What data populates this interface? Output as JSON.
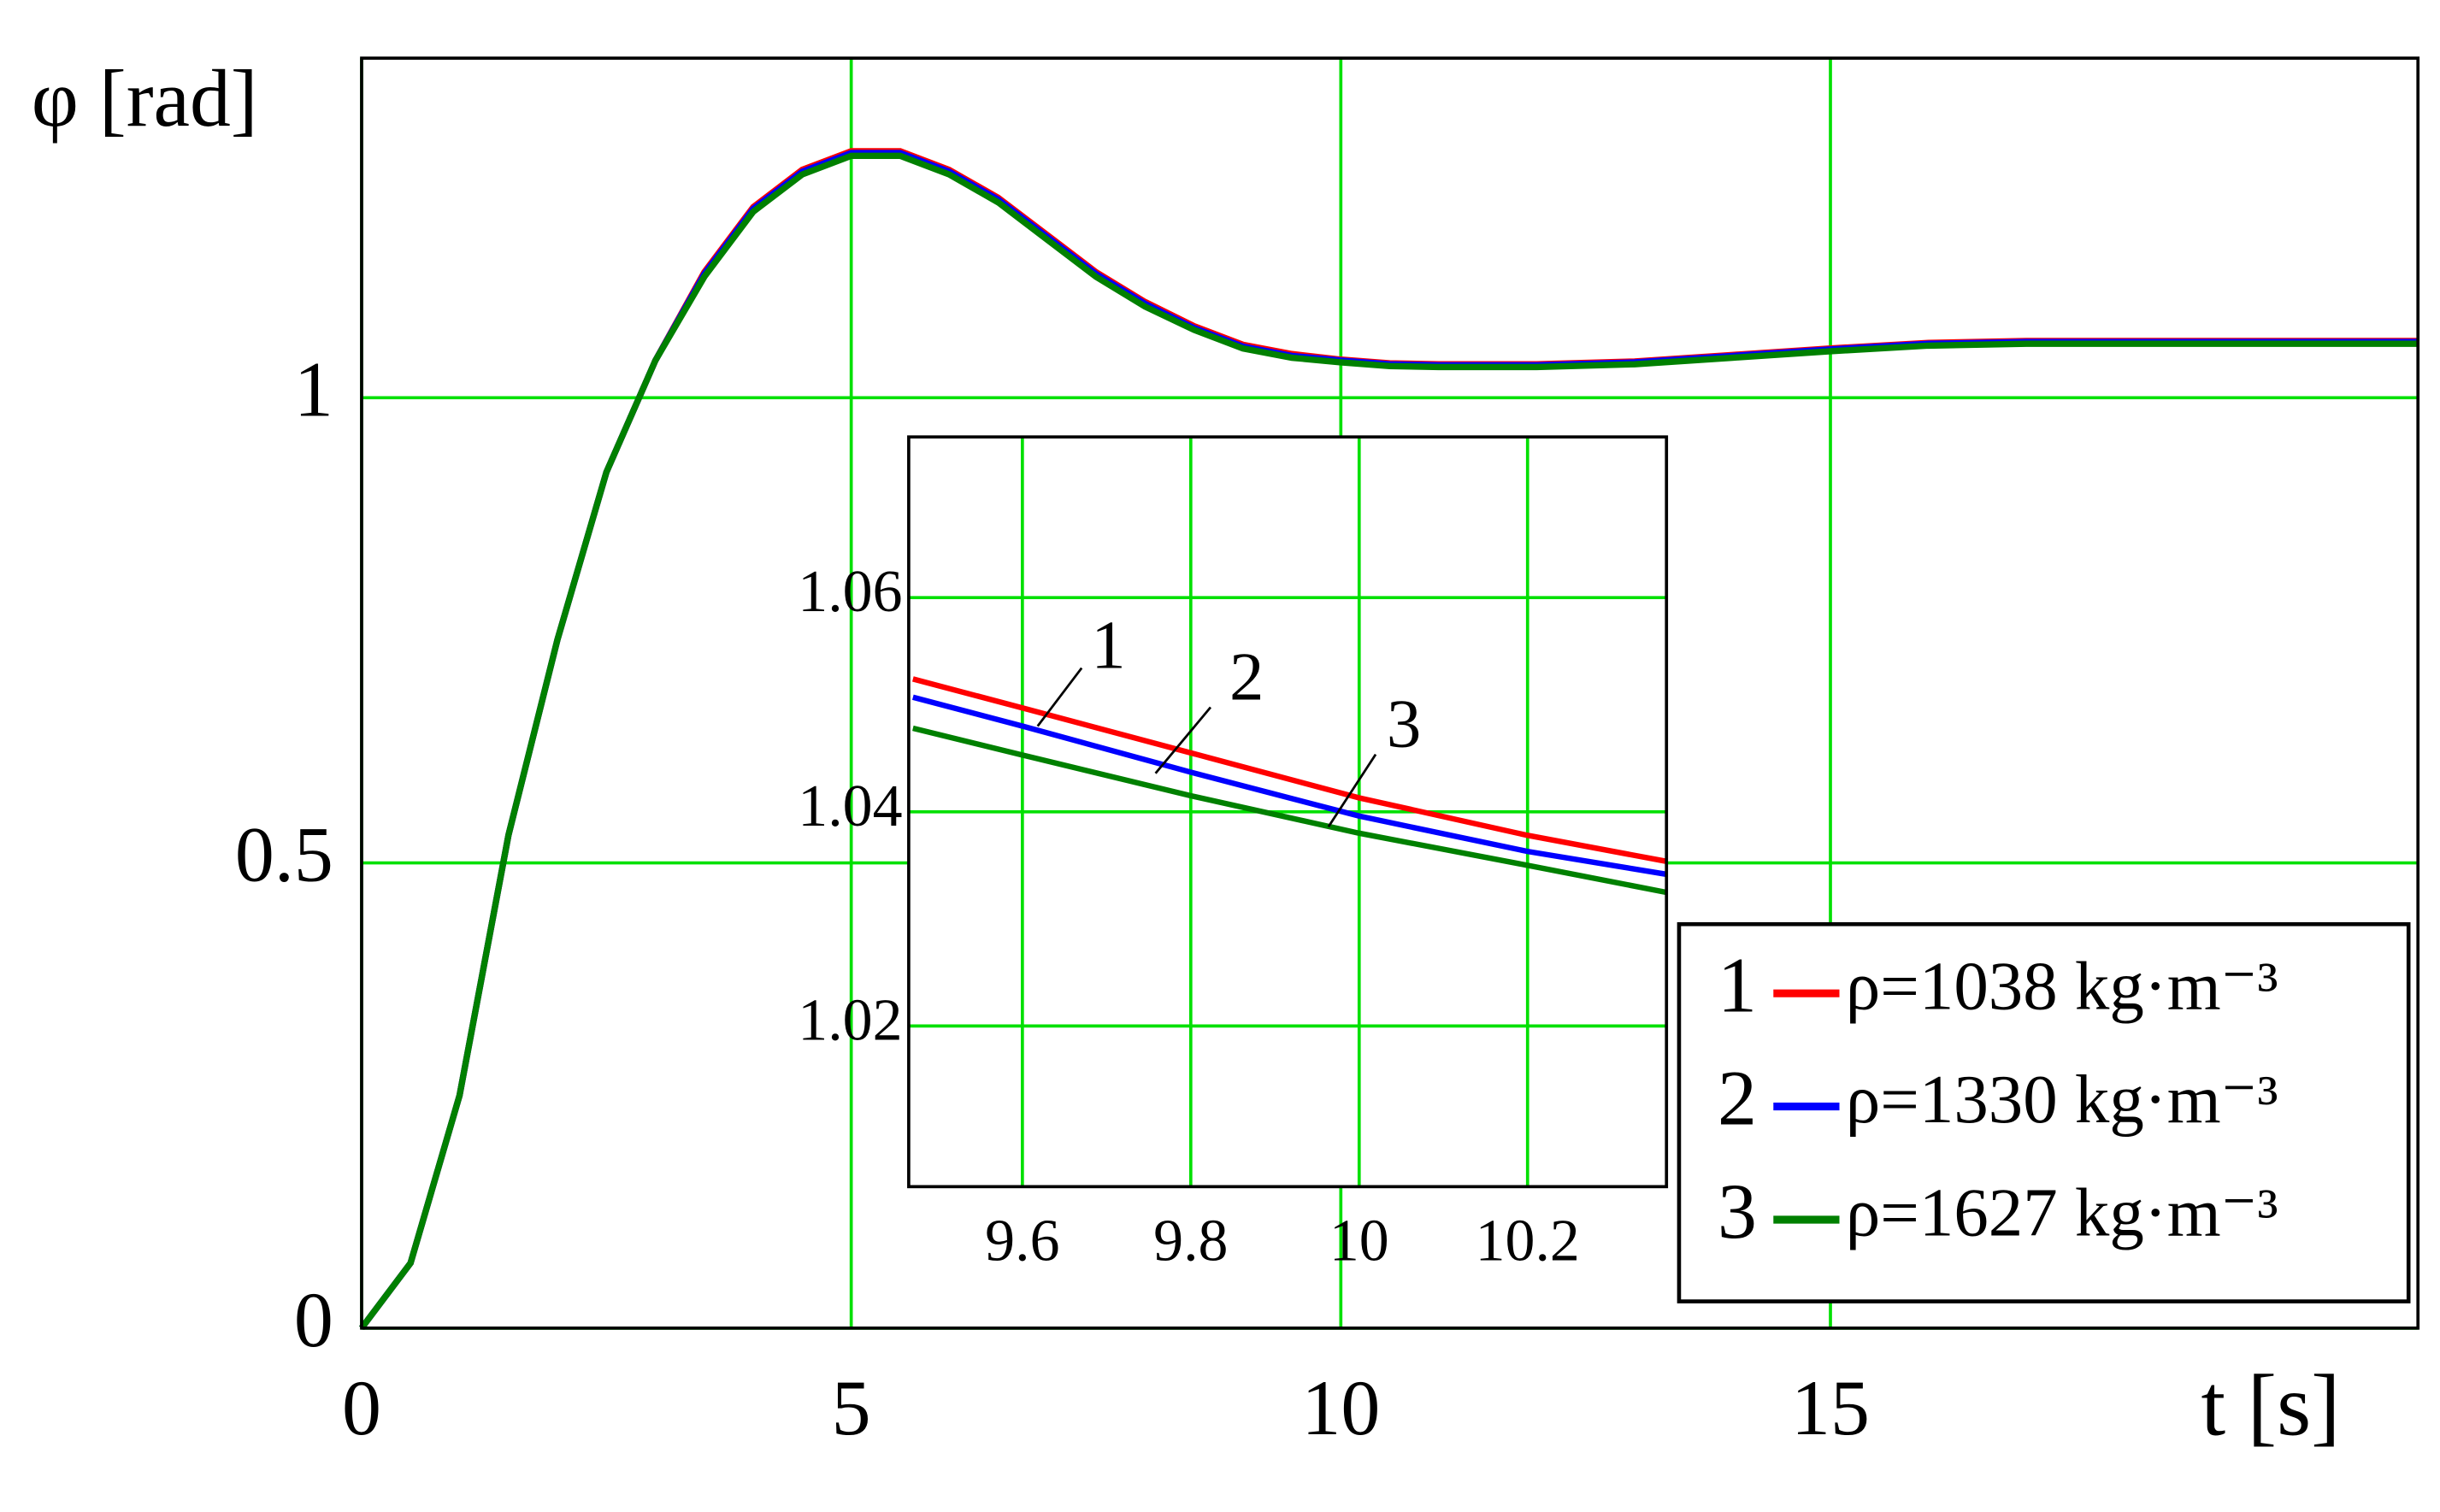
{
  "chart_data": [
    {
      "type": "line",
      "y_label": "φ [rad]",
      "x_label": "t [s]",
      "x": [
        0,
        0.5,
        1,
        1.5,
        2,
        2.5,
        3,
        3.5,
        4,
        4.5,
        5,
        5.5,
        6,
        6.5,
        7,
        7.5,
        8,
        8.5,
        9,
        9.5,
        10,
        10.5,
        11,
        11.5,
        12,
        13,
        14,
        15,
        16,
        17,
        18,
        19,
        20,
        21
      ],
      "series": [
        {
          "name": "ρ=1038 kg·m⁻³",
          "label": "1",
          "color": "#ff0000",
          "values": [
            0,
            0.07,
            0.25,
            0.53,
            0.74,
            0.92,
            1.04,
            1.135,
            1.205,
            1.245,
            1.265,
            1.265,
            1.245,
            1.215,
            1.175,
            1.135,
            1.103,
            1.077,
            1.057,
            1.047,
            1.041,
            1.037,
            1.036,
            1.036,
            1.036,
            1.039,
            1.046,
            1.053,
            1.059,
            1.061,
            1.061,
            1.061,
            1.061,
            1.061
          ]
        },
        {
          "name": "ρ=1330 kg·m⁻³",
          "label": "2",
          "color": "#0000ff",
          "values": [
            0,
            0.07,
            0.25,
            0.53,
            0.74,
            0.92,
            1.04,
            1.133,
            1.203,
            1.243,
            1.263,
            1.263,
            1.243,
            1.213,
            1.173,
            1.133,
            1.101,
            1.075,
            1.055,
            1.045,
            1.04,
            1.036,
            1.035,
            1.035,
            1.035,
            1.038,
            1.045,
            1.052,
            1.058,
            1.06,
            1.06,
            1.06,
            1.06,
            1.06
          ]
        },
        {
          "name": "ρ=1627 kg·m⁻³",
          "label": "3",
          "color": "#008000",
          "values": [
            0,
            0.07,
            0.25,
            0.53,
            0.74,
            0.92,
            1.04,
            1.13,
            1.2,
            1.24,
            1.26,
            1.26,
            1.24,
            1.21,
            1.17,
            1.13,
            1.098,
            1.073,
            1.053,
            1.043,
            1.038,
            1.034,
            1.033,
            1.033,
            1.033,
            1.036,
            1.043,
            1.05,
            1.056,
            1.058,
            1.058,
            1.058,
            1.058,
            1.058
          ]
        }
      ],
      "xlim": [
        0,
        21
      ],
      "ylim": [
        0,
        1.365
      ],
      "xticks": [
        0,
        5,
        10,
        15
      ],
      "yticks": [
        0,
        0.5,
        1
      ],
      "grid": true
    },
    {
      "type": "line",
      "x": [
        9.47,
        9.6,
        9.8,
        10,
        10.2,
        10.37
      ],
      "series": [
        {
          "color": "#ff0000",
          "values": [
            1.0524,
            1.0497,
            1.0455,
            1.0413,
            1.0378,
            1.0353
          ]
        },
        {
          "color": "#0000ff",
          "values": [
            1.0507,
            1.048,
            1.0437,
            1.0396,
            1.0363,
            1.0341
          ]
        },
        {
          "color": "#008000",
          "values": [
            1.0478,
            1.0453,
            1.0415,
            1.038,
            1.035,
            1.0324
          ]
        }
      ],
      "annotations": [
        "1",
        "2",
        "3"
      ],
      "xlim": [
        9.465,
        10.365
      ],
      "ylim": [
        1.005,
        1.075
      ],
      "xticks": [
        9.6,
        9.8,
        10,
        10.2
      ],
      "yticks": [
        1.02,
        1.04,
        1.06
      ],
      "grid": true
    }
  ]
}
